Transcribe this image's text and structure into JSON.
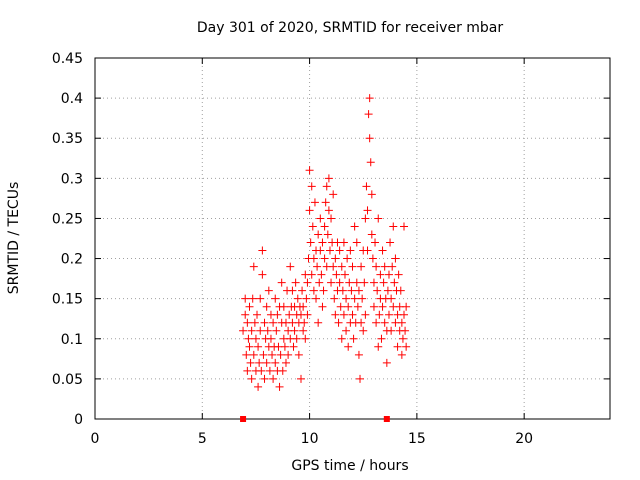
{
  "chart_data": {
    "type": "scatter",
    "title": "Day 301 of 2020, SRMTID for receiver mbar",
    "xlabel": "GPS time / hours",
    "ylabel": "SRMTID / TECUs",
    "xlim": [
      0,
      24
    ],
    "ylim": [
      0,
      0.45
    ],
    "xticks": [
      0,
      5,
      10,
      15,
      20
    ],
    "yticks": [
      0,
      0.05,
      0.1,
      0.15,
      0.2,
      0.25,
      0.3,
      0.35,
      0.4,
      0.45
    ],
    "grid": true,
    "marker": "plus",
    "color": "#ff0000",
    "zero_markers": [
      6.9,
      13.6
    ],
    "points": [
      [
        6.9,
        0.11
      ],
      [
        7.0,
        0.13
      ],
      [
        7.0,
        0.15
      ],
      [
        7.05,
        0.08
      ],
      [
        7.1,
        0.06
      ],
      [
        7.1,
        0.12
      ],
      [
        7.15,
        0.1
      ],
      [
        7.2,
        0.09
      ],
      [
        7.2,
        0.14
      ],
      [
        7.25,
        0.07
      ],
      [
        7.3,
        0.11
      ],
      [
        7.3,
        0.05
      ],
      [
        7.35,
        0.15
      ],
      [
        7.4,
        0.19
      ],
      [
        7.4,
        0.08
      ],
      [
        7.45,
        0.12
      ],
      [
        7.5,
        0.06
      ],
      [
        7.5,
        0.1
      ],
      [
        7.55,
        0.13
      ],
      [
        7.6,
        0.09
      ],
      [
        7.6,
        0.04
      ],
      [
        7.65,
        0.07
      ],
      [
        7.7,
        0.11
      ],
      [
        7.7,
        0.15
      ],
      [
        7.75,
        0.06
      ],
      [
        7.8,
        0.18
      ],
      [
        7.8,
        0.21
      ],
      [
        7.85,
        0.08
      ],
      [
        7.9,
        0.12
      ],
      [
        7.9,
        0.05
      ],
      [
        7.95,
        0.1
      ],
      [
        8.0,
        0.14
      ],
      [
        8.0,
        0.07
      ],
      [
        8.05,
        0.11
      ],
      [
        8.1,
        0.09
      ],
      [
        8.1,
        0.16
      ],
      [
        8.15,
        0.06
      ],
      [
        8.2,
        0.13
      ],
      [
        8.2,
        0.1
      ],
      [
        8.25,
        0.08
      ],
      [
        8.3,
        0.12
      ],
      [
        8.3,
        0.05
      ],
      [
        8.35,
        0.09
      ],
      [
        8.4,
        0.15
      ],
      [
        8.4,
        0.07
      ],
      [
        8.45,
        0.11
      ],
      [
        8.5,
        0.06
      ],
      [
        8.5,
        0.13
      ],
      [
        8.55,
        0.09
      ],
      [
        8.6,
        0.04
      ],
      [
        8.6,
        0.14
      ],
      [
        8.65,
        0.08
      ],
      [
        8.7,
        0.12
      ],
      [
        8.7,
        0.17
      ],
      [
        8.75,
        0.06
      ],
      [
        8.8,
        0.1
      ],
      [
        8.8,
        0.14
      ],
      [
        8.85,
        0.09
      ],
      [
        8.9,
        0.12
      ],
      [
        8.9,
        0.07
      ],
      [
        8.95,
        0.16
      ],
      [
        9.0,
        0.11
      ],
      [
        9.0,
        0.08
      ],
      [
        9.05,
        0.13
      ],
      [
        9.1,
        0.1
      ],
      [
        9.1,
        0.19
      ],
      [
        9.15,
        0.14
      ],
      [
        9.2,
        0.12
      ],
      [
        9.2,
        0.16
      ],
      [
        9.25,
        0.09
      ],
      [
        9.3,
        0.14
      ],
      [
        9.3,
        0.11
      ],
      [
        9.35,
        0.17
      ],
      [
        9.4,
        0.13
      ],
      [
        9.4,
        0.1
      ],
      [
        9.45,
        0.15
      ],
      [
        9.5,
        0.12
      ],
      [
        9.5,
        0.08
      ],
      [
        9.55,
        0.14
      ],
      [
        9.6,
        0.05
      ],
      [
        9.6,
        0.13
      ],
      [
        9.65,
        0.16
      ],
      [
        9.7,
        0.11
      ],
      [
        9.7,
        0.14
      ],
      [
        9.75,
        0.12
      ],
      [
        9.8,
        0.18
      ],
      [
        9.8,
        0.1
      ],
      [
        9.85,
        0.15
      ],
      [
        9.9,
        0.13
      ],
      [
        9.9,
        0.17
      ],
      [
        9.95,
        0.2
      ],
      [
        10.0,
        0.31
      ],
      [
        10.0,
        0.26
      ],
      [
        10.05,
        0.22
      ],
      [
        10.1,
        0.29
      ],
      [
        10.1,
        0.18
      ],
      [
        10.15,
        0.24
      ],
      [
        10.2,
        0.2
      ],
      [
        10.2,
        0.16
      ],
      [
        10.25,
        0.27
      ],
      [
        10.3,
        0.21
      ],
      [
        10.3,
        0.15
      ],
      [
        10.35,
        0.19
      ],
      [
        10.4,
        0.23
      ],
      [
        10.4,
        0.12
      ],
      [
        10.45,
        0.17
      ],
      [
        10.5,
        0.21
      ],
      [
        10.5,
        0.25
      ],
      [
        10.55,
        0.18
      ],
      [
        10.6,
        0.14
      ],
      [
        10.6,
        0.22
      ],
      [
        10.65,
        0.16
      ],
      [
        10.7,
        0.2
      ],
      [
        10.7,
        0.24
      ],
      [
        10.75,
        0.27
      ],
      [
        10.8,
        0.29
      ],
      [
        10.8,
        0.19
      ],
      [
        10.85,
        0.23
      ],
      [
        10.9,
        0.3
      ],
      [
        10.9,
        0.26
      ],
      [
        10.95,
        0.21
      ],
      [
        11.0,
        0.25
      ],
      [
        11.0,
        0.17
      ],
      [
        11.05,
        0.22
      ],
      [
        11.1,
        0.19
      ],
      [
        11.1,
        0.28
      ],
      [
        11.15,
        0.15
      ],
      [
        11.2,
        0.2
      ],
      [
        11.2,
        0.13
      ],
      [
        11.25,
        0.18
      ],
      [
        11.3,
        0.16
      ],
      [
        11.3,
        0.22
      ],
      [
        11.35,
        0.12
      ],
      [
        11.4,
        0.17
      ],
      [
        11.4,
        0.21
      ],
      [
        11.45,
        0.14
      ],
      [
        11.5,
        0.19
      ],
      [
        11.5,
        0.1
      ],
      [
        11.55,
        0.16
      ],
      [
        11.6,
        0.13
      ],
      [
        11.6,
        0.22
      ],
      [
        11.65,
        0.18
      ],
      [
        11.7,
        0.11
      ],
      [
        11.7,
        0.15
      ],
      [
        11.75,
        0.2
      ],
      [
        11.8,
        0.14
      ],
      [
        11.8,
        0.09
      ],
      [
        11.85,
        0.17
      ],
      [
        11.9,
        0.12
      ],
      [
        11.9,
        0.21
      ],
      [
        11.95,
        0.16
      ],
      [
        12.0,
        0.13
      ],
      [
        12.0,
        0.19
      ],
      [
        12.05,
        0.1
      ],
      [
        12.1,
        0.15
      ],
      [
        12.1,
        0.24
      ],
      [
        12.15,
        0.12
      ],
      [
        12.2,
        0.17
      ],
      [
        12.2,
        0.22
      ],
      [
        12.25,
        0.14
      ],
      [
        12.3,
        0.08
      ],
      [
        12.3,
        0.16
      ],
      [
        12.35,
        0.05
      ],
      [
        12.4,
        0.12
      ],
      [
        12.4,
        0.19
      ],
      [
        12.45,
        0.15
      ],
      [
        12.5,
        0.11
      ],
      [
        12.5,
        0.21
      ],
      [
        12.55,
        0.17
      ],
      [
        12.6,
        0.25
      ],
      [
        12.6,
        0.13
      ],
      [
        12.65,
        0.29
      ],
      [
        12.7,
        0.21
      ],
      [
        12.7,
        0.26
      ],
      [
        12.75,
        0.38
      ],
      [
        12.8,
        0.4
      ],
      [
        12.8,
        0.35
      ],
      [
        12.85,
        0.32
      ],
      [
        12.9,
        0.28
      ],
      [
        12.9,
        0.23
      ],
      [
        12.95,
        0.2
      ],
      [
        13.0,
        0.17
      ],
      [
        13.0,
        0.14
      ],
      [
        13.05,
        0.22
      ],
      [
        13.1,
        0.19
      ],
      [
        13.1,
        0.12
      ],
      [
        13.15,
        0.16
      ],
      [
        13.2,
        0.09
      ],
      [
        13.2,
        0.25
      ],
      [
        13.25,
        0.13
      ],
      [
        13.3,
        0.18
      ],
      [
        13.3,
        0.15
      ],
      [
        13.35,
        0.1
      ],
      [
        13.4,
        0.21
      ],
      [
        13.4,
        0.14
      ],
      [
        13.45,
        0.17
      ],
      [
        13.5,
        0.12
      ],
      [
        13.5,
        0.19
      ],
      [
        13.55,
        0.15
      ],
      [
        13.6,
        0.07
      ],
      [
        13.6,
        0.11
      ],
      [
        13.65,
        0.16
      ],
      [
        13.7,
        0.13
      ],
      [
        13.7,
        0.18
      ],
      [
        13.75,
        0.22
      ],
      [
        13.8,
        0.15
      ],
      [
        13.8,
        0.11
      ],
      [
        13.85,
        0.19
      ],
      [
        13.9,
        0.14
      ],
      [
        13.9,
        0.24
      ],
      [
        13.95,
        0.17
      ],
      [
        14.0,
        0.12
      ],
      [
        14.0,
        0.2
      ],
      [
        14.05,
        0.16
      ],
      [
        14.1,
        0.13
      ],
      [
        14.1,
        0.09
      ],
      [
        14.15,
        0.18
      ],
      [
        14.2,
        0.14
      ],
      [
        14.2,
        0.11
      ],
      [
        14.25,
        0.16
      ],
      [
        14.3,
        0.12
      ],
      [
        14.3,
        0.08
      ],
      [
        14.35,
        0.1
      ],
      [
        14.4,
        0.13
      ],
      [
        14.4,
        0.24
      ],
      [
        14.45,
        0.11
      ],
      [
        14.5,
        0.09
      ],
      [
        14.5,
        0.14
      ]
    ]
  }
}
